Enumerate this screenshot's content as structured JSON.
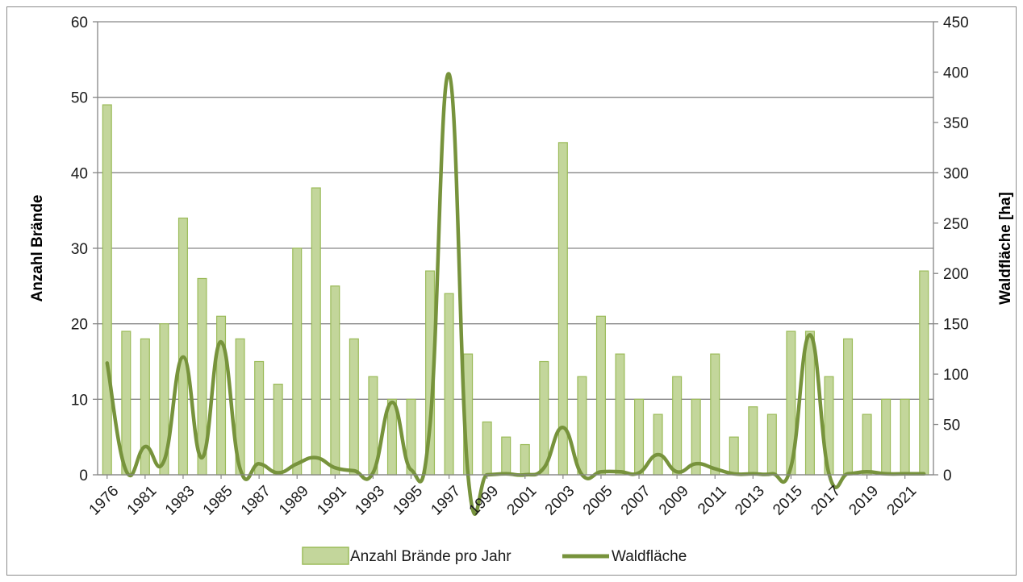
{
  "chart_data": {
    "type": "bar+line",
    "title": "",
    "x": [
      "1976",
      "1980",
      "1981",
      "1982",
      "1983",
      "1984",
      "1985",
      "1986",
      "1987",
      "1988",
      "1989",
      "1990",
      "1991",
      "1992",
      "1993",
      "1994",
      "1995",
      "1996",
      "1997",
      "1998",
      "1999",
      "2000",
      "2001",
      "2002",
      "2003",
      "2004",
      "2005",
      "2006",
      "2007",
      "2008",
      "2009",
      "2010",
      "2011",
      "2012",
      "2013",
      "2014",
      "2015",
      "2016",
      "2017",
      "2018",
      "2019",
      "2020",
      "2021",
      "2022"
    ],
    "x_tick_labels_shown": [
      "1976",
      "1981",
      "1983",
      "1985",
      "1987",
      "1989",
      "1991",
      "1993",
      "1995",
      "1997",
      "1999",
      "2001",
      "2003",
      "2005",
      "2007",
      "2009",
      "2011",
      "2013",
      "2015",
      "2017",
      "2019",
      "2021"
    ],
    "series": [
      {
        "name": "Anzahl Brände pro Jahr",
        "type": "bar",
        "axis": "left",
        "values": [
          49,
          19,
          18,
          20,
          34,
          26,
          21,
          18,
          15,
          12,
          30,
          38,
          25,
          18,
          13,
          10,
          10,
          27,
          24,
          16,
          7,
          5,
          4,
          15,
          44,
          13,
          21,
          16,
          10,
          8,
          13,
          10,
          16,
          5,
          9,
          8,
          19,
          19,
          13,
          18,
          8,
          10,
          10,
          27
        ]
      },
      {
        "name": "Waldfläche",
        "type": "line",
        "axis": "right",
        "values": [
          111,
          4,
          28,
          14,
          117,
          17,
          132,
          6,
          11,
          2,
          11,
          17,
          7,
          4,
          2,
          72,
          5,
          50,
          398,
          0,
          0,
          1,
          0,
          7,
          47,
          0,
          3,
          3,
          2,
          20,
          3,
          11,
          6,
          1,
          1,
          1,
          8,
          139,
          1,
          1,
          3,
          1,
          1,
          1
        ]
      }
    ],
    "ylabel": "Anzahl Brände",
    "ylim": [
      0,
      60
    ],
    "yticks": [
      0,
      10,
      20,
      30,
      40,
      50,
      60
    ],
    "y2label": "Waldfläche [ha]",
    "y2lim": [
      0,
      450
    ],
    "y2ticks": [
      0,
      50,
      100,
      150,
      200,
      250,
      300,
      350,
      400,
      450
    ],
    "grid": "horizontal",
    "legend_position": "bottom",
    "colors": {
      "bar_fill": "#c3d69b",
      "bar_stroke": "#9bbb59",
      "line": "#77933c",
      "grid": "#868686",
      "axis": "#868686"
    }
  }
}
